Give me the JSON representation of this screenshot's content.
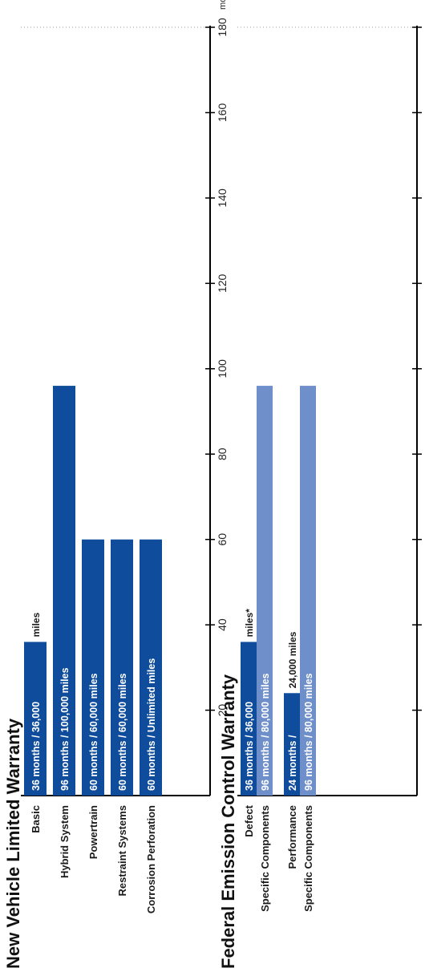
{
  "chart_data": [
    {
      "type": "bar",
      "title": "New Vehicle Limited Warranty",
      "unit_label": "months",
      "xlim": [
        0,
        180
      ],
      "ticks": [
        20,
        40,
        60,
        80,
        100,
        120,
        140,
        160,
        180
      ],
      "colors": {
        "primary": "#0f4c9c"
      },
      "bars": [
        {
          "category": "Basic",
          "value": 36,
          "label": "36 months / 36,000",
          "label_after": "miles",
          "style": "primary"
        },
        {
          "category": "Hybrid System",
          "value": 96,
          "label": "96 months / 100,000 miles",
          "label_after": "",
          "style": "primary"
        },
        {
          "category": "Powertrain",
          "value": 60,
          "label": "60 months / 60,000 miles",
          "label_after": "",
          "style": "primary"
        },
        {
          "category": "Restraint Systems",
          "value": 60,
          "label": "60 months / 60,000 miles",
          "label_after": "",
          "style": "primary"
        },
        {
          "category": "Corrosion Perforation",
          "value": 60,
          "label": "60 months / Unlimited miles",
          "label_after": "",
          "style": "primary"
        }
      ]
    },
    {
      "type": "bar",
      "title": "Federal Emission Control Warranty",
      "unit_label": "months",
      "xlim": [
        0,
        180
      ],
      "ticks": [
        20,
        40,
        60,
        80,
        100,
        120,
        140,
        160,
        180
      ],
      "colors": {
        "primary": "#0f4c9c",
        "secondary": "#6f8fca"
      },
      "bars": [
        {
          "category": "Defect",
          "value": 36,
          "label": "36 months / 36,000",
          "label_after": "miles*",
          "style": "primary"
        },
        {
          "category": "Specific Components",
          "value": 96,
          "label": "96 months / 80,000 miles",
          "label_after": "",
          "style": "secondary"
        },
        {
          "category": "Performance",
          "value": 24,
          "label": "24 months /",
          "label_after": "24,000 miles",
          "style": "primary"
        },
        {
          "category": "Specific Components",
          "value": 96,
          "label": "96 months / 80,000 miles",
          "label_after": "",
          "style": "secondary"
        }
      ]
    }
  ]
}
